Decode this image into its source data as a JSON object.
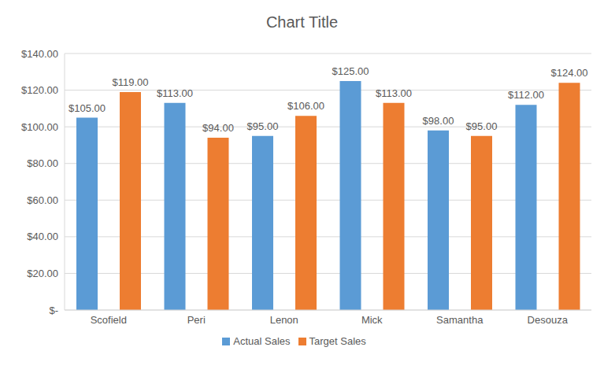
{
  "chart_data": {
    "type": "bar",
    "title": "Chart Title",
    "categories": [
      "Scofield",
      "Peri",
      "Lenon",
      "Mick",
      "Samantha",
      "Desouza"
    ],
    "series": [
      {
        "name": "Actual Sales",
        "color": "#5b9bd5",
        "values": [
          105,
          113,
          95,
          125,
          98,
          112
        ],
        "value_labels": [
          "$105.00",
          "$113.00",
          "$95.00",
          "$125.00",
          "$98.00",
          "$112.00"
        ]
      },
      {
        "name": "Target Sales",
        "color": "#ed7d31",
        "values": [
          119,
          94,
          106,
          113,
          95,
          124
        ],
        "value_labels": [
          "$119.00",
          "$94.00",
          "$106.00",
          "$113.00",
          "$95.00",
          "$124.00"
        ]
      }
    ],
    "ylim": [
      0,
      140
    ],
    "yticks": [
      {
        "value": 0,
        "label": "$-"
      },
      {
        "value": 20,
        "label": "$20.00"
      },
      {
        "value": 40,
        "label": "$40.00"
      },
      {
        "value": 60,
        "label": "$60.00"
      },
      {
        "value": 80,
        "label": "$80.00"
      },
      {
        "value": 100,
        "label": "$100.00"
      },
      {
        "value": 120,
        "label": "$120.00"
      },
      {
        "value": 140,
        "label": "$140.00"
      }
    ],
    "grid": true,
    "legend": "bottom",
    "data_labels": true
  }
}
